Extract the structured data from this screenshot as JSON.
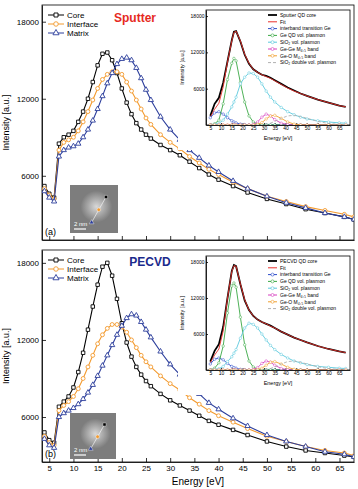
{
  "chart_data": [
    {
      "type": "line",
      "title": "Sputter",
      "ylabel": "Intensity [a.u.]",
      "annotations": [
        "(a)",
        "2 nm"
      ],
      "x": [
        4,
        5,
        6,
        7,
        8,
        9,
        10,
        11,
        12,
        13,
        14,
        15,
        16,
        17,
        18,
        19,
        20,
        21,
        22,
        23,
        24,
        25,
        26,
        28,
        30,
        32,
        34,
        36,
        38,
        40,
        43,
        46,
        50,
        54,
        58,
        62,
        66,
        68
      ],
      "xlim": [
        3.5,
        68
      ],
      "xticks": [
        5,
        10,
        15,
        20,
        25,
        30,
        35,
        40,
        45,
        50,
        55,
        60,
        65
      ],
      "ylim": [
        1000,
        19300
      ],
      "yticks": [
        6000,
        12000,
        18000
      ],
      "tick_labels": "y",
      "legend": "upper left",
      "series": [
        {
          "name": "Core",
          "color": "#000000",
          "marker": "square",
          "values": [
            5200,
            4600,
            4300,
            8500,
            9000,
            9200,
            9500,
            10200,
            11000,
            12000,
            13300,
            14600,
            15500,
            15600,
            15000,
            14000,
            12800,
            11700,
            10800,
            10100,
            9600,
            9200,
            8900,
            8400,
            8000,
            7600,
            7100,
            6600,
            6100,
            5700,
            5200,
            4700,
            4200,
            3800,
            3400,
            3100,
            2800,
            2600
          ]
        },
        {
          "name": "Interface",
          "color": "#f39a2e",
          "marker": "circle",
          "values": [
            5000,
            4500,
            4200,
            8000,
            8600,
            8800,
            9000,
            9500,
            10200,
            11000,
            11900,
            12800,
            13500,
            13900,
            14100,
            14100,
            13900,
            13300,
            12600,
            11900,
            11200,
            10500,
            10000,
            9200,
            8600,
            8100,
            7500,
            7000,
            6500,
            6100,
            5500,
            5000,
            4400,
            4000,
            3600,
            3300,
            3000,
            2800
          ]
        },
        {
          "name": "Matrix",
          "color": "#2c3e9c",
          "marker": "triangle",
          "values": [
            4800,
            4300,
            4000,
            7500,
            8000,
            8200,
            8300,
            8500,
            9000,
            9600,
            10300,
            11200,
            12200,
            13200,
            14000,
            14700,
            15100,
            15200,
            15000,
            14400,
            13600,
            12700,
            11900,
            10600,
            9600,
            8800,
            8000,
            7400,
            6800,
            6300,
            5600,
            5000,
            4400,
            3900,
            3500,
            3100,
            2800,
            2600
          ]
        }
      ]
    },
    {
      "type": "line",
      "xlabel": "Energy [eV]",
      "ylabel": "Intensity [a.u.]",
      "x": [
        5,
        7,
        9,
        11,
        13,
        15,
        16,
        17,
        19,
        21,
        23,
        25,
        27,
        29,
        31,
        33,
        35,
        38,
        41,
        44,
        47,
        50,
        55,
        60,
        65,
        68
      ],
      "xlim": [
        3,
        70
      ],
      "xticks": [
        5,
        10,
        15,
        20,
        25,
        30,
        35,
        40,
        45,
        50,
        55,
        60,
        65
      ],
      "ylim": [
        0,
        19000
      ],
      "yticks": [
        6000,
        12000,
        18000
      ],
      "legend": "upper right",
      "series": [
        {
          "name": "Sputter QD core",
          "color": "#000000",
          "line_style": "solid",
          "values": [
            1500,
            3500,
            4500,
            7000,
            10500,
            14000,
            15400,
            15500,
            13800,
            11600,
            10100,
            9200,
            8700,
            8300,
            8100,
            7800,
            7400,
            6800,
            6200,
            5700,
            5200,
            4800,
            4200,
            3700,
            3200,
            3000
          ]
        },
        {
          "name": "Fit",
          "color": "#e8312b",
          "line_style": "solid",
          "values": [
            1300,
            2600,
            3600,
            6300,
            10400,
            13900,
            15300,
            15500,
            13900,
            11700,
            10200,
            9200,
            8700,
            8300,
            8000,
            7700,
            7300,
            6700,
            6100,
            5600,
            5200,
            4800,
            4200,
            3700,
            3200,
            3000
          ]
        },
        {
          "name": "interband transition Ge",
          "color": "#2b4cc9",
          "marker": "circle",
          "values": [
            1200,
            2000,
            2200,
            1800,
            1200,
            700,
            500,
            350,
            150,
            60,
            20,
            0,
            0,
            0,
            0,
            0,
            0,
            0,
            0,
            0,
            0,
            0,
            0,
            0,
            0,
            0
          ]
        },
        {
          "name": "Ge QD vol. plasmon",
          "color": "#3aa845",
          "marker": "circle",
          "values": [
            0,
            200,
            800,
            3500,
            7500,
            10200,
            11000,
            10600,
            7000,
            3800,
            1500,
            500,
            150,
            50,
            0,
            0,
            0,
            0,
            0,
            0,
            0,
            0,
            0,
            0,
            0,
            0
          ]
        },
        {
          "name": "SiO₂ vol. plasmon",
          "color": "#5bc8dc",
          "marker": "circle",
          "values": [
            0,
            100,
            300,
            800,
            1800,
            3000,
            3800,
            4600,
            6800,
            7900,
            8600,
            8500,
            7900,
            6800,
            5600,
            4600,
            3800,
            2900,
            2200,
            1700,
            1300,
            1000,
            700,
            500,
            350,
            300
          ]
        },
        {
          "name": "Ge-Ge M₄,₅ band",
          "color": "#d63fbf",
          "marker": "circle",
          "values": [
            0,
            0,
            0,
            0,
            0,
            0,
            0,
            0,
            0,
            0,
            0,
            100,
            500,
            1300,
            1800,
            1500,
            900,
            300,
            80,
            0,
            0,
            0,
            0,
            0,
            0,
            0
          ]
        },
        {
          "name": "Ge-O M₄,₅ band",
          "color": "#f0a030",
          "marker": "circle",
          "values": [
            0,
            0,
            0,
            0,
            0,
            0,
            0,
            0,
            0,
            0,
            0,
            0,
            100,
            400,
            1000,
            1500,
            1600,
            1100,
            500,
            150,
            0,
            0,
            0,
            0,
            0,
            0
          ]
        },
        {
          "name": "SiO₂ double vol. plasmon",
          "color": "#b0b0b0",
          "line_style": "dashed",
          "values": [
            0,
            0,
            0,
            0,
            0,
            0,
            0,
            0,
            0,
            0,
            0,
            0,
            0,
            0,
            100,
            300,
            600,
            1100,
            1500,
            1600,
            1400,
            1100,
            600,
            250,
            100,
            50
          ]
        }
      ]
    },
    {
      "type": "line",
      "title": "PECVD",
      "xlabel": "Energy [eV]",
      "ylabel": "Intensity [a.u.]",
      "annotations": [
        "(b)",
        "2 nm"
      ],
      "x": [
        4,
        5,
        6,
        7,
        8,
        9,
        10,
        11,
        12,
        13,
        14,
        15,
        16,
        17,
        18,
        19,
        20,
        21,
        22,
        23,
        24,
        25,
        26,
        28,
        30,
        32,
        34,
        36,
        38,
        40,
        43,
        46,
        50,
        54,
        58,
        62,
        66,
        68
      ],
      "xlim": [
        3.5,
        68
      ],
      "xticks": [
        5,
        10,
        15,
        20,
        25,
        30,
        35,
        40,
        45,
        50,
        55,
        60,
        65
      ],
      "ylim": [
        2500,
        19000
      ],
      "yticks": [
        6000,
        12000,
        18000
      ],
      "legend": "upper left",
      "series": [
        {
          "name": "Core",
          "color": "#000000",
          "marker": "square",
          "values": [
            4800,
            4200,
            4000,
            6800,
            7200,
            7600,
            8300,
            9500,
            11000,
            12800,
            14600,
            16300,
            17700,
            18000,
            17000,
            15200,
            13300,
            11800,
            10700,
            9900,
            9300,
            8800,
            8400,
            7800,
            7300,
            6900,
            6500,
            6100,
            5700,
            5400,
            5000,
            4600,
            4100,
            3700,
            3400,
            3200,
            3000,
            2900
          ]
        },
        {
          "name": "Interface",
          "color": "#f39a2e",
          "marker": "circle",
          "values": [
            4500,
            4000,
            3800,
            6500,
            6900,
            7200,
            7600,
            8200,
            9000,
            9900,
            10800,
            11700,
            12400,
            12900,
            13200,
            13200,
            13000,
            12600,
            12000,
            11400,
            10800,
            10300,
            9900,
            9200,
            8600,
            8100,
            7500,
            7000,
            6500,
            6100,
            5600,
            5100,
            4500,
            4100,
            3700,
            3400,
            3200,
            3000
          ]
        },
        {
          "name": "Matrix",
          "color": "#2c3e9c",
          "marker": "triangle",
          "values": [
            4300,
            3800,
            3600,
            6000,
            6300,
            6500,
            6700,
            7000,
            7400,
            7900,
            8500,
            9200,
            10000,
            10800,
            11600,
            12400,
            13100,
            13700,
            14000,
            13900,
            13400,
            12800,
            12200,
            11100,
            10100,
            9300,
            8500,
            7800,
            7100,
            6600,
            5900,
            5300,
            4600,
            4100,
            3700,
            3300,
            3100,
            2900
          ]
        }
      ]
    },
    {
      "type": "line",
      "xlabel": "Energy [eV]",
      "ylabel": "Intensity [a.u.]",
      "x": [
        5,
        7,
        9,
        11,
        13,
        15,
        16,
        17,
        19,
        21,
        23,
        25,
        27,
        29,
        31,
        33,
        35,
        38,
        41,
        44,
        47,
        50,
        55,
        60,
        65,
        68
      ],
      "xlim": [
        3,
        70
      ],
      "xticks": [
        5,
        10,
        15,
        20,
        25,
        30,
        35,
        40,
        45,
        50,
        55,
        60,
        65
      ],
      "ylim": [
        0,
        19000
      ],
      "yticks": [
        6000,
        12000,
        18000
      ],
      "legend": "upper right",
      "series": [
        {
          "name": "PECVD QD core",
          "color": "#000000",
          "line_style": "solid",
          "values": [
            1400,
            3200,
            4300,
            7200,
            12000,
            16500,
            17500,
            17300,
            14300,
            11600,
            10000,
            9000,
            8400,
            8000,
            7700,
            7400,
            7000,
            6400,
            5900,
            5400,
            5000,
            4600,
            4000,
            3500,
            3100,
            2900
          ]
        },
        {
          "name": "Fit",
          "color": "#e8312b",
          "line_style": "solid",
          "values": [
            1200,
            2500,
            3500,
            6500,
            12000,
            16400,
            17400,
            17300,
            14400,
            11700,
            10000,
            9000,
            8400,
            8000,
            7700,
            7300,
            7000,
            6400,
            5900,
            5400,
            5000,
            4600,
            4000,
            3500,
            3100,
            2900
          ]
        },
        {
          "name": "interband transition Ge",
          "color": "#2b4cc9",
          "marker": "circle",
          "values": [
            1000,
            1800,
            2000,
            1700,
            1100,
            600,
            400,
            300,
            100,
            50,
            0,
            0,
            0,
            0,
            0,
            0,
            0,
            0,
            0,
            0,
            0,
            0,
            0,
            0,
            0,
            0
          ]
        },
        {
          "name": "Ge QD vol. plasmon",
          "color": "#3aa845",
          "marker": "circle",
          "values": [
            0,
            300,
            1200,
            4000,
            9500,
            14000,
            14500,
            13800,
            8800,
            4200,
            1500,
            500,
            150,
            0,
            0,
            0,
            0,
            0,
            0,
            0,
            0,
            0,
            0,
            0,
            0,
            0
          ]
        },
        {
          "name": "SiO₂ vol. plasmon",
          "color": "#5bc8dc",
          "marker": "circle",
          "values": [
            0,
            100,
            200,
            600,
            1400,
            2200,
            2800,
            3400,
            5300,
            7000,
            7800,
            7600,
            7000,
            6000,
            5000,
            4100,
            3400,
            2600,
            2000,
            1500,
            1200,
            900,
            600,
            450,
            300,
            250
          ]
        },
        {
          "name": "Ge-Ge M₄,₅ band",
          "color": "#d63fbf",
          "marker": "circle",
          "values": [
            0,
            0,
            0,
            0,
            0,
            0,
            0,
            0,
            0,
            0,
            0,
            80,
            400,
            1100,
            1500,
            1300,
            800,
            250,
            60,
            0,
            0,
            0,
            0,
            0,
            0,
            0
          ]
        },
        {
          "name": "Ge-O M₄,₅ band",
          "color": "#f0a030",
          "marker": "circle",
          "values": [
            0,
            0,
            0,
            0,
            0,
            0,
            0,
            0,
            0,
            0,
            0,
            0,
            80,
            300,
            800,
            1300,
            1400,
            1000,
            450,
            120,
            0,
            0,
            0,
            0,
            0,
            0
          ]
        },
        {
          "name": "SiO₂ double vol. plasmon",
          "color": "#b0b0b0",
          "line_style": "dashed",
          "values": [
            0,
            0,
            0,
            0,
            0,
            0,
            0,
            0,
            0,
            0,
            0,
            0,
            0,
            0,
            80,
            250,
            500,
            1000,
            1400,
            1500,
            1300,
            1000,
            550,
            220,
            90,
            40
          ]
        }
      ]
    }
  ]
}
